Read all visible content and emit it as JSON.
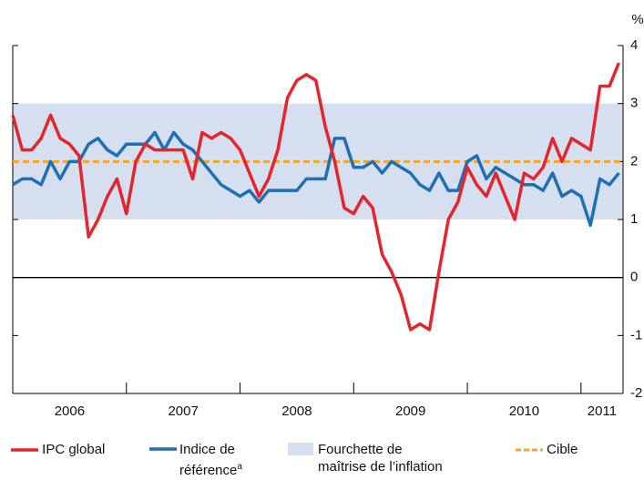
{
  "chart_data": {
    "type": "line",
    "y_label": "%",
    "xlim": [
      2006,
      2011.37
    ],
    "xticks": [
      2006,
      2007,
      2008,
      2009,
      2010,
      2011
    ],
    "ylim": [
      -2,
      4
    ],
    "yticks": [
      4,
      3,
      2,
      1,
      0,
      -1,
      -2
    ],
    "x": [
      2006.0,
      2006.083,
      2006.167,
      2006.25,
      2006.333,
      2006.417,
      2006.5,
      2006.583,
      2006.667,
      2006.75,
      2006.833,
      2006.917,
      2007.0,
      2007.083,
      2007.167,
      2007.25,
      2007.333,
      2007.417,
      2007.5,
      2007.583,
      2007.667,
      2007.75,
      2007.833,
      2007.917,
      2008.0,
      2008.083,
      2008.167,
      2008.25,
      2008.333,
      2008.417,
      2008.5,
      2008.583,
      2008.667,
      2008.75,
      2008.833,
      2008.917,
      2009.0,
      2009.083,
      2009.167,
      2009.25,
      2009.333,
      2009.417,
      2009.5,
      2009.583,
      2009.667,
      2009.75,
      2009.833,
      2009.917,
      2010.0,
      2010.083,
      2010.167,
      2010.25,
      2010.333,
      2010.417,
      2010.5,
      2010.583,
      2010.667,
      2010.75,
      2010.833,
      2010.917,
      2011.0,
      2011.083,
      2011.167,
      2011.25,
      2011.333
    ],
    "band": {
      "name": "Fourchette de maîtrise de l’inflation",
      "range": [
        1,
        3
      ],
      "color": "#d5dff0"
    },
    "target": {
      "name": "Cible",
      "value": 2,
      "color": "#f5a623"
    },
    "series": [
      {
        "name": "IPC global",
        "color": "#e3262d",
        "values": [
          2.8,
          2.2,
          2.2,
          2.4,
          2.8,
          2.4,
          2.3,
          2.1,
          0.7,
          1.0,
          1.4,
          1.7,
          1.1,
          2.0,
          2.3,
          2.2,
          2.2,
          2.2,
          2.2,
          1.7,
          2.5,
          2.4,
          2.5,
          2.4,
          2.2,
          1.8,
          1.4,
          1.7,
          2.2,
          3.1,
          3.4,
          3.5,
          3.4,
          2.6,
          2.0,
          1.2,
          1.1,
          1.4,
          1.2,
          0.4,
          0.1,
          -0.3,
          -0.9,
          -0.8,
          -0.9,
          0.1,
          1.0,
          1.3,
          1.9,
          1.6,
          1.4,
          1.8,
          1.4,
          1.0,
          1.8,
          1.7,
          1.9,
          2.4,
          2.0,
          2.4,
          2.3,
          2.2,
          3.3,
          3.3,
          3.7
        ]
      },
      {
        "name": "Indice de référence",
        "note": "a",
        "color": "#1f6fb5",
        "values": [
          1.6,
          1.7,
          1.7,
          1.6,
          2.0,
          1.7,
          2.0,
          2.0,
          2.3,
          2.4,
          2.2,
          2.1,
          2.3,
          2.3,
          2.3,
          2.5,
          2.2,
          2.5,
          2.3,
          2.2,
          2.0,
          1.8,
          1.6,
          1.5,
          1.4,
          1.5,
          1.3,
          1.5,
          1.5,
          1.5,
          1.5,
          1.7,
          1.7,
          1.7,
          2.4,
          2.4,
          1.9,
          1.9,
          2.0,
          1.8,
          2.0,
          1.9,
          1.8,
          1.6,
          1.5,
          1.8,
          1.5,
          1.5,
          2.0,
          2.1,
          1.7,
          1.9,
          1.8,
          1.7,
          1.6,
          1.6,
          1.5,
          1.8,
          1.4,
          1.5,
          1.4,
          0.9,
          1.7,
          1.6,
          1.8
        ]
      }
    ]
  }
}
